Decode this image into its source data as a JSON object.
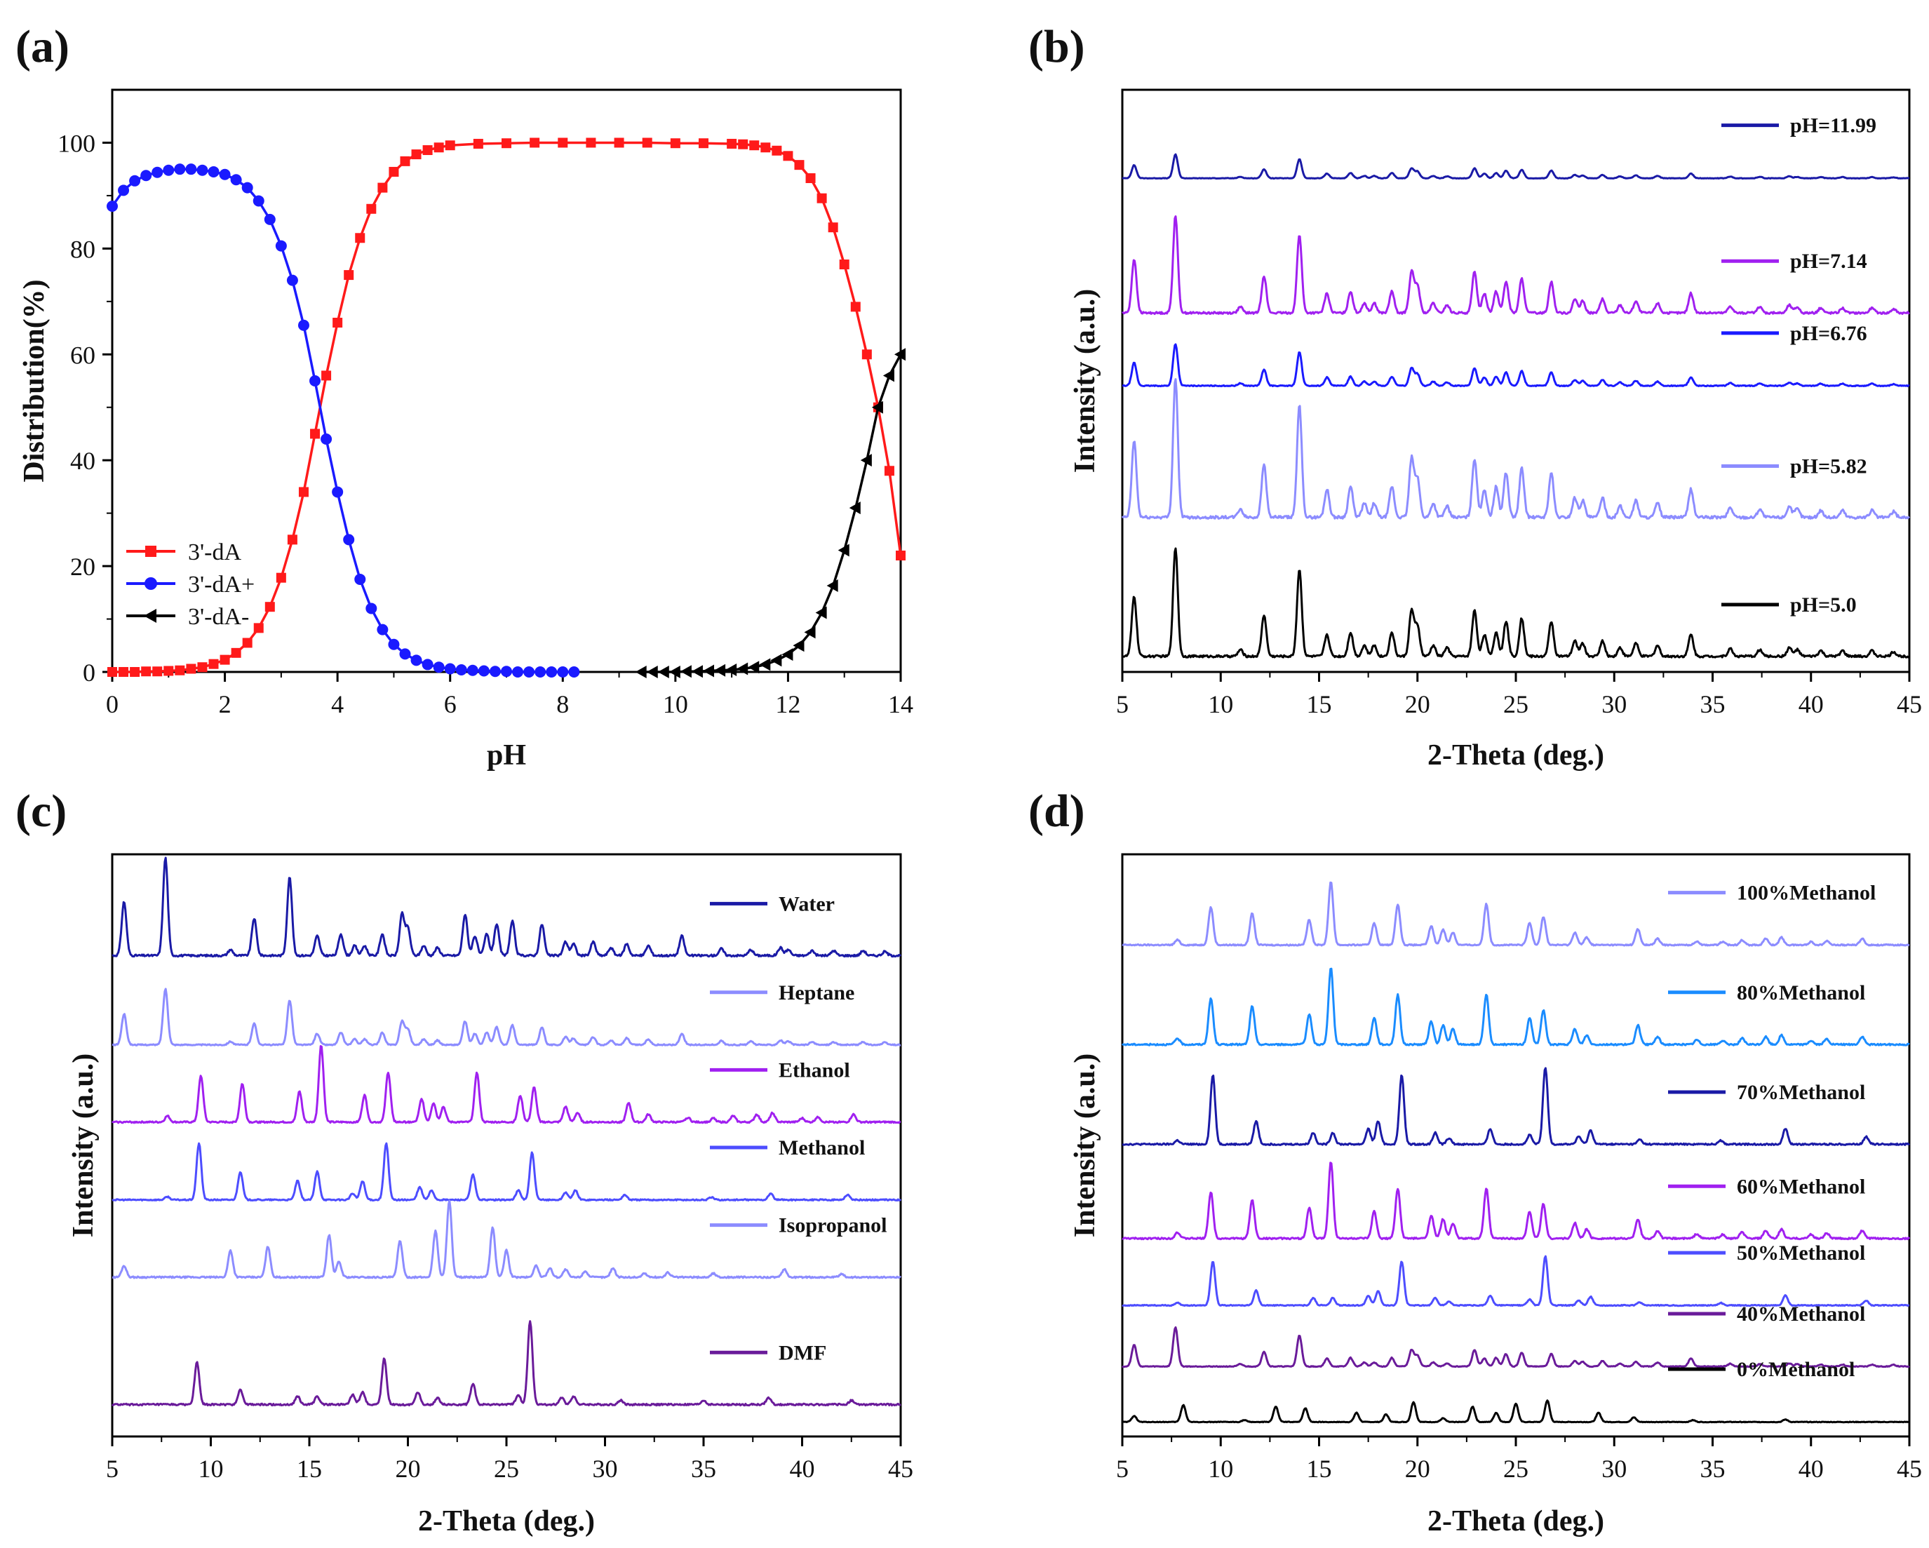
{
  "chart_data": [
    {
      "panel_label": "(a)",
      "type": "line",
      "xlabel": "pH",
      "ylabel": "Distribution(%)",
      "xlim": [
        0,
        14
      ],
      "ylim": [
        0,
        110
      ],
      "xticks": [
        "0",
        "2",
        "4",
        "6",
        "8",
        "10",
        "12",
        "14"
      ],
      "yticks": [
        "0",
        "20",
        "40",
        "60",
        "80",
        "100"
      ],
      "legend_position": "bottom-left",
      "series": [
        {
          "name": "3'-dA",
          "color": "#ff1a1a",
          "marker": "square",
          "x": [
            0,
            0.2,
            0.4,
            0.6,
            0.8,
            1,
            1.2,
            1.4,
            1.6,
            1.8,
            2,
            2.2,
            2.4,
            2.6,
            2.8,
            3,
            3.2,
            3.4,
            3.6,
            3.8,
            4,
            4.2,
            4.4,
            4.6,
            4.8,
            5,
            5.2,
            5.4,
            5.6,
            5.8,
            6,
            6.5,
            7,
            7.5,
            8,
            8.5,
            9,
            9.5,
            10,
            10.5,
            11,
            11.2,
            11.4,
            11.6,
            11.8,
            12,
            12.2,
            12.4,
            12.6,
            12.8,
            13,
            13.2,
            13.4,
            13.6,
            13.8,
            14
          ],
          "y": [
            0,
            0,
            0,
            0.1,
            0.1,
            0.2,
            0.3,
            0.6,
            0.9,
            1.5,
            2.3,
            3.6,
            5.5,
            8.3,
            12.3,
            17.8,
            25,
            34,
            45,
            56,
            66,
            75,
            82,
            87.5,
            91.5,
            94.5,
            96.5,
            97.8,
            98.6,
            99.1,
            99.5,
            99.8,
            99.9,
            100,
            100,
            100,
            100,
            100,
            99.9,
            99.9,
            99.8,
            99.7,
            99.5,
            99.1,
            98.5,
            97.5,
            95.8,
            93.3,
            89.5,
            84,
            77,
            69,
            60,
            50,
            38,
            22
          ]
        },
        {
          "name": "3'-dA+",
          "color": "#1a1aff",
          "marker": "circle",
          "x": [
            0,
            0.2,
            0.4,
            0.6,
            0.8,
            1,
            1.2,
            1.4,
            1.6,
            1.8,
            2,
            2.2,
            2.4,
            2.6,
            2.8,
            3,
            3.2,
            3.4,
            3.6,
            3.8,
            4,
            4.2,
            4.4,
            4.6,
            4.8,
            5,
            5.2,
            5.4,
            5.6,
            5.8,
            6,
            6.2,
            6.4,
            6.6,
            6.8,
            7,
            7.2,
            7.4,
            7.6,
            7.8,
            8,
            8.2
          ],
          "y": [
            88,
            91,
            92.8,
            93.8,
            94.4,
            94.8,
            95,
            95,
            94.8,
            94.5,
            94,
            93,
            91.5,
            89,
            85.5,
            80.5,
            74,
            65.5,
            55,
            44,
            34,
            25,
            17.5,
            12,
            8,
            5.2,
            3.4,
            2.2,
            1.4,
            0.9,
            0.6,
            0.4,
            0.3,
            0.2,
            0.1,
            0.1,
            0,
            0,
            0,
            0,
            0,
            0
          ]
        },
        {
          "name": "3'-dA-",
          "color": "#000000",
          "marker": "triangle-left",
          "x": [
            9.4,
            9.6,
            9.8,
            10,
            10.2,
            10.4,
            10.6,
            10.8,
            11,
            11.2,
            11.4,
            11.6,
            11.8,
            12,
            12.2,
            12.4,
            12.6,
            12.8,
            13,
            13.2,
            13.4,
            13.6,
            13.8,
            14
          ],
          "y": [
            0,
            0,
            0,
            0,
            0.1,
            0.1,
            0.2,
            0.3,
            0.4,
            0.6,
            0.9,
            1.4,
            2.2,
            3.3,
            5,
            7.5,
            11.2,
            16.3,
            23,
            31,
            40,
            50,
            56,
            60
          ]
        }
      ]
    },
    {
      "panel_label": "(b)",
      "type": "line",
      "xlabel": "2-Theta (deg.)",
      "ylabel": "Intensity (a.u.)",
      "xlim": [
        5,
        45
      ],
      "xticks": [
        "5",
        "10",
        "15",
        "20",
        "25",
        "30",
        "35",
        "40",
        "45"
      ],
      "legend_position": "right",
      "series": [
        {
          "name": "pH=11.99",
          "color": "#1a1aa6",
          "scale": 0.17,
          "offset": 0.865,
          "pattern": "A"
        },
        {
          "name": "pH=7.14",
          "color": "#a020f0",
          "scale": 0.7,
          "offset": 0.62,
          "pattern": "A"
        },
        {
          "name": "pH=6.76",
          "color": "#1a1aff",
          "scale": 0.3,
          "offset": 0.49,
          "pattern": "A"
        },
        {
          "name": "pH=5.82",
          "color": "#8c8cff",
          "scale": 1,
          "offset": 0.25,
          "pattern": "A"
        },
        {
          "name": "pH=5.0",
          "color": "#000000",
          "scale": 0.78,
          "offset": 0.0,
          "pattern": "A"
        }
      ]
    },
    {
      "panel_label": "(c)",
      "type": "line",
      "xlabel": "2-Theta (deg.)",
      "ylabel": "Intensity (a.u.)",
      "xlim": [
        5,
        45
      ],
      "xticks": [
        "5",
        "10",
        "15",
        "20",
        "25",
        "30",
        "35",
        "40",
        "45"
      ],
      "legend_position": "right",
      "series": [
        {
          "name": "Water",
          "color": "#1a1aa6",
          "scale": 0.7,
          "offset": 0.84,
          "pattern": "A"
        },
        {
          "name": "Heptane",
          "color": "#8c8cff",
          "scale": 0.4,
          "offset": 0.68,
          "pattern": "A"
        },
        {
          "name": "Ethanol",
          "color": "#a020f0",
          "scale": 0.55,
          "offset": 0.54,
          "pattern": "B"
        },
        {
          "name": "Methanol",
          "color": "#4d4dff",
          "scale": 0.45,
          "offset": 0.4,
          "pattern": "C"
        },
        {
          "name": "Isopropanol",
          "color": "#8c8cff",
          "scale": 0.55,
          "offset": 0.26,
          "pattern": "D"
        },
        {
          "name": "DMF",
          "color": "#6a1b9a",
          "scale": 0.6,
          "offset": 0.03,
          "pattern": "E"
        }
      ]
    },
    {
      "panel_label": "(d)",
      "type": "line",
      "xlabel": "2-Theta (deg.)",
      "ylabel": "Intensity (a.u.)",
      "xlim": [
        5,
        45
      ],
      "xticks": [
        "5",
        "10",
        "15",
        "20",
        "25",
        "30",
        "35",
        "40",
        "45"
      ],
      "legend_position": "right",
      "series": [
        {
          "name": "100%Methanol",
          "color": "#8c8cff",
          "scale": 0.45,
          "offset": 0.86,
          "pattern": "B"
        },
        {
          "name": "80%Methanol",
          "color": "#1a8cff",
          "scale": 0.55,
          "offset": 0.68,
          "pattern": "B"
        },
        {
          "name": "70%Methanol",
          "color": "#1a1aa6",
          "scale": 0.55,
          "offset": 0.5,
          "pattern": "C2"
        },
        {
          "name": "60%Methanol",
          "color": "#a020f0",
          "scale": 0.55,
          "offset": 0.33,
          "pattern": "B"
        },
        {
          "name": "50%Methanol",
          "color": "#4d4dff",
          "scale": 0.35,
          "offset": 0.21,
          "pattern": "C2"
        },
        {
          "name": "40%Methanol",
          "color": "#6a1b9a",
          "scale": 0.28,
          "offset": 0.1,
          "pattern": "A"
        },
        {
          "name": "0%Methanol",
          "color": "#000000",
          "scale": 0.22,
          "offset": 0.0,
          "pattern": "F"
        }
      ]
    }
  ],
  "peak_patterns": {
    "A": [
      [
        5.6,
        0.55
      ],
      [
        7.7,
        1.0
      ],
      [
        11,
        0.06
      ],
      [
        12.2,
        0.38
      ],
      [
        14,
        0.8
      ],
      [
        15.4,
        0.2
      ],
      [
        16.6,
        0.22
      ],
      [
        17.3,
        0.1
      ],
      [
        17.8,
        0.1
      ],
      [
        18.7,
        0.22
      ],
      [
        19.7,
        0.42
      ],
      [
        20,
        0.28
      ],
      [
        20.8,
        0.1
      ],
      [
        21.5,
        0.08
      ],
      [
        22.9,
        0.42
      ],
      [
        23.4,
        0.2
      ],
      [
        24,
        0.22
      ],
      [
        24.5,
        0.32
      ],
      [
        25.3,
        0.35
      ],
      [
        26.8,
        0.32
      ],
      [
        28,
        0.14
      ],
      [
        28.4,
        0.12
      ],
      [
        29.4,
        0.14
      ],
      [
        30.3,
        0.08
      ],
      [
        31.1,
        0.12
      ],
      [
        32.2,
        0.1
      ],
      [
        33.9,
        0.2
      ],
      [
        35.9,
        0.07
      ],
      [
        37.4,
        0.06
      ],
      [
        38.9,
        0.08
      ],
      [
        39.3,
        0.06
      ],
      [
        40.5,
        0.05
      ],
      [
        41.6,
        0.05
      ],
      [
        43.1,
        0.05
      ],
      [
        44.2,
        0.04
      ]
    ],
    "B": [
      [
        7.8,
        0.08
      ],
      [
        9.5,
        0.6
      ],
      [
        11.6,
        0.5
      ],
      [
        14.5,
        0.4
      ],
      [
        15.6,
        1.0
      ],
      [
        17.8,
        0.35
      ],
      [
        19,
        0.65
      ],
      [
        20.7,
        0.3
      ],
      [
        21.3,
        0.25
      ],
      [
        21.8,
        0.2
      ],
      [
        23.5,
        0.65
      ],
      [
        25.7,
        0.35
      ],
      [
        26.4,
        0.45
      ],
      [
        28,
        0.2
      ],
      [
        28.6,
        0.12
      ],
      [
        31.2,
        0.25
      ],
      [
        32.2,
        0.1
      ],
      [
        34.2,
        0.06
      ],
      [
        35.5,
        0.05
      ],
      [
        36.5,
        0.08
      ],
      [
        37.7,
        0.1
      ],
      [
        38.5,
        0.12
      ],
      [
        40,
        0.05
      ],
      [
        40.8,
        0.07
      ],
      [
        42.6,
        0.1
      ]
    ],
    "C": [
      [
        7.8,
        0.05
      ],
      [
        9.4,
        0.9
      ],
      [
        11.5,
        0.45
      ],
      [
        14.4,
        0.3
      ],
      [
        15.4,
        0.45
      ],
      [
        17.2,
        0.1
      ],
      [
        17.7,
        0.3
      ],
      [
        18.9,
        0.9
      ],
      [
        20.6,
        0.2
      ],
      [
        21.2,
        0.15
      ],
      [
        23.3,
        0.4
      ],
      [
        25.6,
        0.15
      ],
      [
        26.3,
        0.75
      ],
      [
        28,
        0.12
      ],
      [
        28.5,
        0.15
      ],
      [
        31,
        0.08
      ],
      [
        35.4,
        0.04
      ],
      [
        38.4,
        0.1
      ],
      [
        42.3,
        0.08
      ]
    ],
    "C2": [
      [
        7.8,
        0.05
      ],
      [
        9.6,
        0.9
      ],
      [
        11.8,
        0.3
      ],
      [
        14.7,
        0.15
      ],
      [
        15.7,
        0.15
      ],
      [
        17.5,
        0.2
      ],
      [
        18,
        0.3
      ],
      [
        19.2,
        0.9
      ],
      [
        20.9,
        0.15
      ],
      [
        21.6,
        0.08
      ],
      [
        23.7,
        0.2
      ],
      [
        25.7,
        0.12
      ],
      [
        26.5,
        1.0
      ],
      [
        28.2,
        0.1
      ],
      [
        28.8,
        0.18
      ],
      [
        31.3,
        0.06
      ],
      [
        35.4,
        0.05
      ],
      [
        38.7,
        0.2
      ],
      [
        42.8,
        0.1
      ]
    ],
    "D": [
      [
        5.6,
        0.15
      ],
      [
        11,
        0.35
      ],
      [
        12.9,
        0.4
      ],
      [
        16,
        0.55
      ],
      [
        16.5,
        0.2
      ],
      [
        19.6,
        0.48
      ],
      [
        21.4,
        0.6
      ],
      [
        22.1,
        1.0
      ],
      [
        24.3,
        0.65
      ],
      [
        25,
        0.35
      ],
      [
        26.5,
        0.15
      ],
      [
        27.2,
        0.12
      ],
      [
        28,
        0.1
      ],
      [
        29,
        0.08
      ],
      [
        30.4,
        0.12
      ],
      [
        32,
        0.05
      ],
      [
        33.2,
        0.06
      ],
      [
        35.5,
        0.05
      ],
      [
        39.1,
        0.1
      ],
      [
        42,
        0.04
      ]
    ],
    "E": [
      [
        9.3,
        0.5
      ],
      [
        11.5,
        0.18
      ],
      [
        14.4,
        0.1
      ],
      [
        15.4,
        0.1
      ],
      [
        17.2,
        0.12
      ],
      [
        17.7,
        0.15
      ],
      [
        18.8,
        0.55
      ],
      [
        20.5,
        0.15
      ],
      [
        21.5,
        0.08
      ],
      [
        23.3,
        0.25
      ],
      [
        25.6,
        0.12
      ],
      [
        26.2,
        1.0
      ],
      [
        27.8,
        0.08
      ],
      [
        28.4,
        0.1
      ],
      [
        30.8,
        0.05
      ],
      [
        35,
        0.05
      ],
      [
        38.3,
        0.08
      ],
      [
        42.5,
        0.05
      ]
    ],
    "F": [
      [
        5.6,
        0.2
      ],
      [
        8.1,
        0.55
      ],
      [
        11.2,
        0.06
      ],
      [
        12.8,
        0.5
      ],
      [
        14.3,
        0.45
      ],
      [
        16.9,
        0.3
      ],
      [
        18.4,
        0.25
      ],
      [
        19.8,
        0.65
      ],
      [
        21.3,
        0.12
      ],
      [
        22.8,
        0.5
      ],
      [
        24,
        0.3
      ],
      [
        25,
        0.6
      ],
      [
        26.6,
        0.7
      ],
      [
        29.2,
        0.3
      ],
      [
        31,
        0.15
      ],
      [
        34,
        0.06
      ],
      [
        38.7,
        0.08
      ]
    ]
  }
}
